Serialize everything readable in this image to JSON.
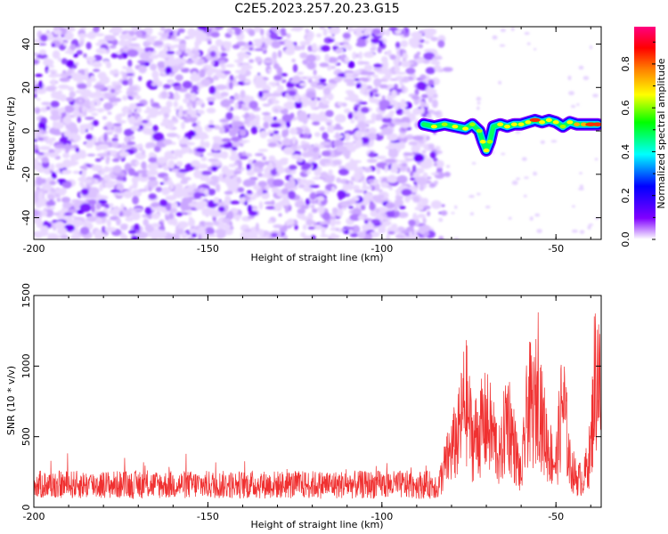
{
  "title": "C2E5.2023.257.20.23.G15",
  "chart_data": [
    {
      "type": "heatmap",
      "title": "C2E5.2023.257.20.23.G15",
      "xlabel": "Height of straight line (km)",
      "ylabel": "Frequency (Hz)",
      "xlim": [
        -200,
        -37
      ],
      "ylim": [
        -50,
        48
      ],
      "xticks": [
        -200,
        -150,
        -100,
        -50
      ],
      "yticks": [
        -40,
        -20,
        0,
        20,
        40
      ],
      "colorbar": {
        "label": "Normalized spectral amplitude",
        "range": [
          0,
          0.97
        ],
        "ticks": [
          "0.0",
          "0.2",
          "0.4",
          "0.6",
          "0.8"
        ],
        "colors": [
          "#ffffff",
          "#8000ff",
          "#0000ff",
          "#00ffff",
          "#00ff00",
          "#ffff00",
          "#ff8000",
          "#ff0000",
          "#ff0080"
        ]
      },
      "noise_region": {
        "x_range": [
          -200,
          -84
        ],
        "y_range": [
          -50,
          48
        ],
        "amplitude_range": [
          0.0,
          0.18
        ]
      },
      "ridge": {
        "x": [
          -88,
          -85,
          -82,
          -79,
          -76,
          -74,
          -72,
          -71,
          -70,
          -69,
          -68,
          -66,
          -64,
          -62,
          -60,
          -58,
          -56,
          -54,
          -52,
          -50,
          -48,
          -46,
          -44,
          -42,
          -40,
          -38
        ],
        "y": [
          3,
          2,
          3,
          2,
          1,
          3,
          0,
          -5,
          -9,
          -5,
          2,
          3,
          2,
          3,
          3,
          4,
          5,
          4,
          5,
          4,
          2,
          4,
          3,
          3,
          3,
          3
        ],
        "amplitude": [
          0.4,
          0.5,
          0.45,
          0.5,
          0.5,
          0.45,
          0.45,
          0.5,
          0.55,
          0.45,
          0.4,
          0.5,
          0.55,
          0.5,
          0.5,
          0.55,
          0.8,
          0.55,
          0.5,
          0.55,
          0.45,
          0.55,
          0.6,
          0.7,
          0.8,
          0.75
        ]
      }
    },
    {
      "type": "line",
      "xlabel": "Height of straight line (km)",
      "ylabel": "SNR (10 * v/v)",
      "xlim": [
        -200,
        -37
      ],
      "ylim": [
        0,
        1500
      ],
      "xticks": [
        -200,
        -150,
        -100,
        -50
      ],
      "yticks": [
        0,
        500,
        1000,
        1500
      ],
      "color": "#f03030",
      "series": [
        {
          "x": [
            -200,
            -190,
            -180,
            -170,
            -160,
            -150,
            -140,
            -130,
            -120,
            -110,
            -100,
            -90,
            -84,
            -82,
            -80,
            -78,
            -76,
            -74,
            -72,
            -70,
            -68,
            -66,
            -64,
            -62,
            -60,
            -58,
            -56,
            -55,
            -54,
            -52,
            -50,
            -48,
            -46,
            -44,
            -42,
            -40,
            -39,
            -38,
            -37
          ],
          "y": [
            170,
            175,
            170,
            180,
            165,
            175,
            170,
            180,
            175,
            170,
            180,
            185,
            200,
            420,
            600,
            750,
            1150,
            700,
            800,
            900,
            750,
            500,
            1000,
            650,
            300,
            1100,
            1000,
            1400,
            900,
            600,
            450,
            1150,
            450,
            300,
            300,
            600,
            1300,
            1480,
            1000
          ]
        }
      ]
    }
  ]
}
